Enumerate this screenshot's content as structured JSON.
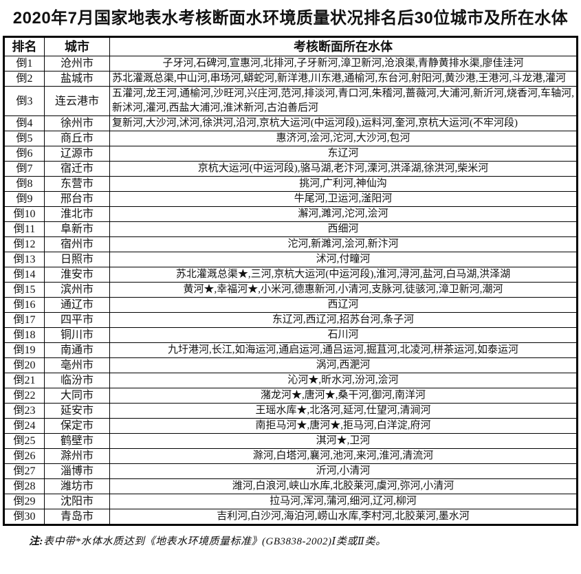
{
  "title": "2020年7月国家地表水考核断面水环境质量状况排名后30位城市及所在水体",
  "colors": {
    "background": "#ffffff",
    "border": "#000000",
    "text": "#111111"
  },
  "table": {
    "headers": {
      "rank": "排名",
      "city": "城市",
      "waters": "考核断面所在水体"
    },
    "rows": [
      {
        "rank": "倒1",
        "city": "沧州市",
        "waters": "子牙河,石碑河,宣惠河,北排河,子牙新河,漳卫新河,沧浪渠,青静黄排水渠,廖佳洼河"
      },
      {
        "rank": "倒2",
        "city": "盐城市",
        "waters": "苏北灌溉总渠,中山河,串场河,蟒蛇河,新洋港,川东港,通榆河,东台河,射阳河,黄沙港,王港河,斗龙港,灌河"
      },
      {
        "rank": "倒3",
        "city": "连云港市",
        "waters": "五灌河,龙王河,通榆河,沙旺河,兴庄河,范河,排淡河,青口河,朱稽河,蔷薇河,大浦河,新沂河,烧香河,车轴河,新沭河,灌河,西盐大浦河,淮沭新河,古泊善后河"
      },
      {
        "rank": "倒4",
        "city": "徐州市",
        "waters": "复新河,大沙河,沭河,徐洪河,沿河,京杭大运河(中运河段),运料河,奎河,京杭大运河(不牢河段)"
      },
      {
        "rank": "倒5",
        "city": "商丘市",
        "waters": "惠济河,浍河,沱河,大沙河,包河"
      },
      {
        "rank": "倒6",
        "city": "辽源市",
        "waters": "东辽河"
      },
      {
        "rank": "倒7",
        "city": "宿迁市",
        "waters": "京杭大运河(中运河段),骆马湖,老汴河,溧河,洪泽湖,徐洪河,柴米河"
      },
      {
        "rank": "倒8",
        "city": "东营市",
        "waters": "挑河,广利河,神仙沟"
      },
      {
        "rank": "倒9",
        "city": "邢台市",
        "waters": "牛尾河,卫运河,滏阳河"
      },
      {
        "rank": "倒10",
        "city": "淮北市",
        "waters": "澥河,濉河,沱河,浍河"
      },
      {
        "rank": "倒11",
        "city": "阜新市",
        "waters": "西细河"
      },
      {
        "rank": "倒12",
        "city": "宿州市",
        "waters": "沱河,新濉河,浍河,新汴河"
      },
      {
        "rank": "倒13",
        "city": "日照市",
        "waters": "沭河,付疃河"
      },
      {
        "rank": "倒14",
        "city": "淮安市",
        "waters": "苏北灌溉总渠★,三河,京杭大运河(中运河段),淮河,浔河,盐河,白马湖,洪泽湖"
      },
      {
        "rank": "倒15",
        "city": "滨州市",
        "waters": "黄河★,幸福河★,小米河,德惠新河,小清河,支脉河,徒骇河,漳卫新河,潮河"
      },
      {
        "rank": "倒16",
        "city": "通辽市",
        "waters": "西辽河"
      },
      {
        "rank": "倒17",
        "city": "四平市",
        "waters": "东辽河,西辽河,招苏台河,条子河"
      },
      {
        "rank": "倒18",
        "city": "铜川市",
        "waters": "石川河"
      },
      {
        "rank": "倒19",
        "city": "南通市",
        "waters": "九圩港河,长江,如海运河,通启运河,通吕运河,掘苴河,北凌河,栟茶运河,如泰运河"
      },
      {
        "rank": "倒20",
        "city": "亳州市",
        "waters": "涡河,西淝河"
      },
      {
        "rank": "倒21",
        "city": "临汾市",
        "waters": "沁河★,昕水河,汾河,浍河"
      },
      {
        "rank": "倒22",
        "city": "大同市",
        "waters": "潴龙河★,唐河★,桑干河,御河,南洋河"
      },
      {
        "rank": "倒23",
        "city": "延安市",
        "waters": "王瑶水库★,北洛河,延河,仕望河,清涧河"
      },
      {
        "rank": "倒24",
        "city": "保定市",
        "waters": "南拒马河★,唐河★,拒马河,白洋淀,府河"
      },
      {
        "rank": "倒25",
        "city": "鹤壁市",
        "waters": "淇河★,卫河"
      },
      {
        "rank": "倒26",
        "city": "滁州市",
        "waters": "滁河,白塔河,襄河,池河,来河,淮河,清流河"
      },
      {
        "rank": "倒27",
        "city": "淄博市",
        "waters": "沂河,小清河"
      },
      {
        "rank": "倒28",
        "city": "潍坊市",
        "waters": "潍河,白浪河,峡山水库,北胶莱河,虞河,弥河,小清河"
      },
      {
        "rank": "倒29",
        "city": "沈阳市",
        "waters": "拉马河,浑河,蒲河,细河,辽河,柳河"
      },
      {
        "rank": "倒30",
        "city": "青岛市",
        "waters": "吉利河,白沙河,海泊河,崂山水库,李村河,北胶莱河,墨水河"
      }
    ]
  },
  "footnote": {
    "prefix": "注:",
    "text": "表中带*水体水质达到《地表水环境质量标准》(GB3838-2002)Ⅰ类或Ⅱ类。"
  }
}
